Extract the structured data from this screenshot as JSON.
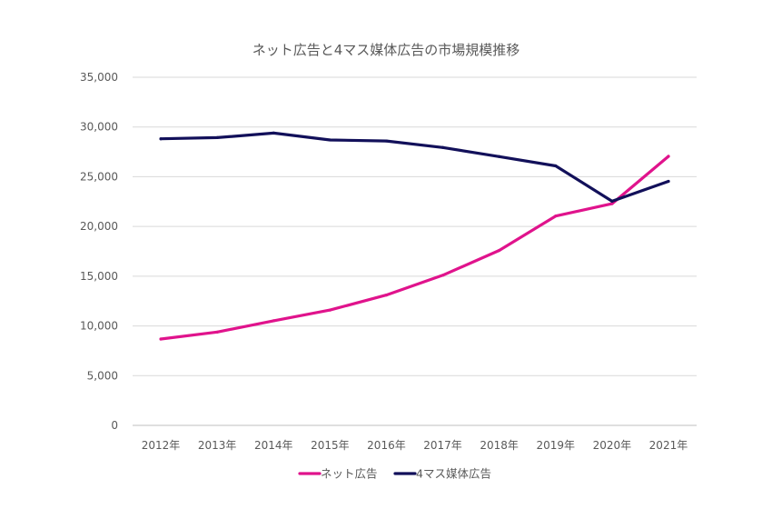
{
  "chart_data": {
    "type": "line",
    "title": "ネット広告と4マス媒体広告の市場規模推移",
    "categories": [
      "2012年",
      "2013年",
      "2014年",
      "2015年",
      "2016年",
      "2017年",
      "2018年",
      "2019年",
      "2020年",
      "2021年"
    ],
    "series": [
      {
        "name": "ネット広告",
        "color": "#e0138c",
        "values": [
          8680,
          9381,
          10519,
          11594,
          13100,
          15094,
          17589,
          21048,
          22290,
          27052
        ]
      },
      {
        "name": "4マス媒体広告",
        "color": "#12105a",
        "values": [
          28809,
          28935,
          29393,
          28699,
          28596,
          27938,
          27026,
          26094,
          22536,
          24538
        ]
      }
    ],
    "ylim": [
      0,
      35000
    ],
    "yticks": [
      "0",
      "5,000",
      "10,000",
      "15,000",
      "20,000",
      "25,000",
      "30,000",
      "35,000"
    ],
    "ytick_values": [
      0,
      5000,
      10000,
      15000,
      20000,
      25000,
      30000,
      35000
    ],
    "xlabel": "",
    "ylabel": "",
    "grid": true,
    "legend_position": "bottom"
  }
}
